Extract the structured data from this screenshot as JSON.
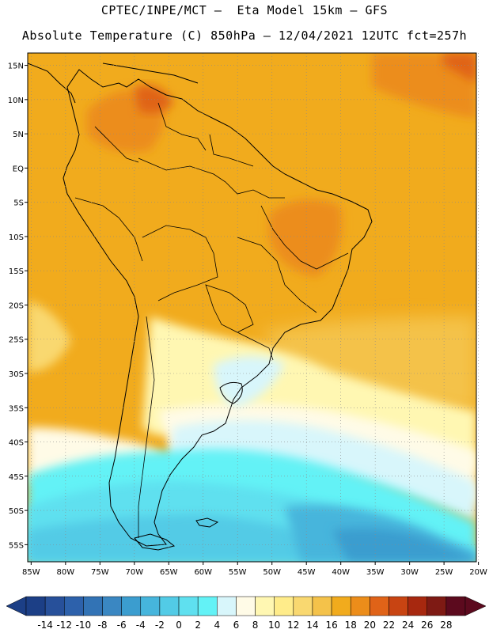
{
  "header": {
    "line1": "CPTEC/INPE/MCT –  Eta Model 15km – GFS",
    "line2": "Absolute Temperature (C) 850hPa – 12/04/2021 12UTC fct=257h"
  },
  "map": {
    "lat_labels": [
      "15N",
      "10N",
      "5N",
      "EQ",
      "5S",
      "10S",
      "15S",
      "20S",
      "25S",
      "30S",
      "35S",
      "40S",
      "45S",
      "50S",
      "55S"
    ],
    "lat_values": [
      15,
      10,
      5,
      0,
      -5,
      -10,
      -15,
      -20,
      -25,
      -30,
      -35,
      -40,
      -45,
      -50,
      -55
    ],
    "lon_labels": [
      "85W",
      "80W",
      "75W",
      "70W",
      "65W",
      "60W",
      "55W",
      "50W",
      "45W",
      "40W",
      "35W",
      "30W",
      "25W",
      "20W"
    ],
    "lon_values": [
      -85,
      -80,
      -75,
      -70,
      -65,
      -60,
      -55,
      -50,
      -45,
      -40,
      -35,
      -30,
      -25,
      -20
    ],
    "extent": {
      "lon_min": -85.5,
      "lon_max": -20.3,
      "lat_min": -57.5,
      "lat_max": 16.8
    }
  },
  "colorbar": {
    "labels": [
      "-14",
      "-12",
      "-10",
      "-8",
      "-6",
      "-4",
      "-2",
      "0",
      "2",
      "4",
      "6",
      "8",
      "10",
      "12",
      "14",
      "16",
      "18",
      "20",
      "22",
      "24",
      "26",
      "28"
    ],
    "colors": [
      "#1c3f86",
      "#27509a",
      "#2d61ab",
      "#3273b5",
      "#3a87c2",
      "#3b9dcf",
      "#46b5dc",
      "#52cbe6",
      "#5fe0ef",
      "#63f2f6",
      "#d8f6fb",
      "#fffbe7",
      "#fff7b2",
      "#ffec8a",
      "#f9d870",
      "#f4c24a",
      "#f1ab1d",
      "#ec8d1a",
      "#e06318",
      "#c84412",
      "#a7280f",
      "#7e1a14",
      "#5c0a1e"
    ]
  }
}
